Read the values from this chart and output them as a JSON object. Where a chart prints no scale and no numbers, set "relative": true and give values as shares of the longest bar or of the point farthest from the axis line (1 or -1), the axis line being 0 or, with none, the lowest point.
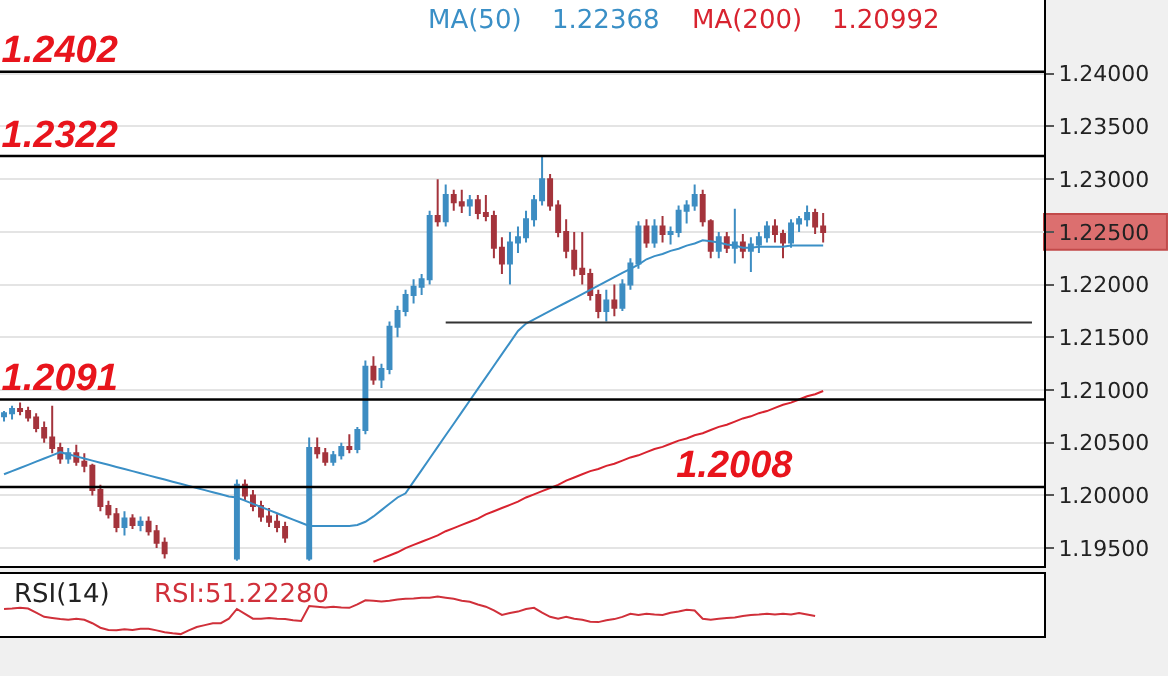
{
  "chart_data": [
    {
      "type": "candlestick",
      "tick_labels": "y",
      "grid": "y",
      "categories": [
        null,
        null,
        null,
        null,
        null,
        null,
        null,
        null,
        null,
        null,
        null,
        null,
        null,
        null,
        null,
        null,
        null,
        null,
        null,
        null,
        null,
        null,
        null,
        null,
        null,
        null,
        null,
        null,
        null,
        null,
        null,
        null,
        null,
        null,
        null,
        null,
        null,
        null,
        null,
        null,
        null,
        null,
        null,
        null,
        null,
        null,
        null,
        null,
        null,
        null,
        null,
        null,
        null,
        null,
        null,
        null,
        null,
        null,
        null,
        null,
        null,
        null,
        null,
        null,
        null,
        null,
        null,
        null,
        null,
        null,
        null,
        null,
        null,
        null,
        null,
        null,
        null,
        null,
        null,
        null,
        null,
        null,
        null,
        null,
        null,
        null,
        null,
        null,
        null,
        null,
        null,
        null,
        null,
        null,
        null,
        null,
        null,
        null,
        null,
        null,
        null,
        null,
        null,
        null,
        null,
        null,
        null,
        null,
        null,
        null,
        null,
        null,
        null,
        null,
        null,
        null,
        null,
        null,
        null,
        null,
        null,
        null,
        null,
        null,
        null,
        null,
        null,
        null,
        null,
        null
      ],
      "ohlc": [
        [
          1.2075,
          1.208,
          1.207,
          1.2078
        ],
        [
          1.2078,
          1.2085,
          1.2072,
          1.2082
        ],
        [
          1.2082,
          1.2088,
          1.2076,
          1.208
        ],
        [
          1.208,
          1.2084,
          1.207,
          1.2074
        ],
        [
          1.2074,
          1.2078,
          1.206,
          1.2064
        ],
        [
          1.2064,
          1.207,
          1.205,
          1.2055
        ],
        [
          1.2055,
          1.2085,
          1.204,
          1.2045
        ],
        [
          1.2045,
          1.205,
          1.203,
          1.2035
        ],
        [
          1.2035,
          1.2045,
          1.203,
          1.204
        ],
        [
          1.204,
          1.2048,
          1.2028,
          1.2032
        ],
        [
          1.2032,
          1.204,
          1.2022,
          1.2028
        ],
        [
          1.2028,
          1.203,
          1.2,
          1.2005
        ],
        [
          1.2005,
          1.201,
          1.1985,
          1.199
        ],
        [
          1.199,
          1.1995,
          1.1978,
          1.1982
        ],
        [
          1.1982,
          1.1988,
          1.1965,
          1.197
        ],
        [
          1.197,
          1.1985,
          1.1962,
          1.1978
        ],
        [
          1.1978,
          1.1982,
          1.1968,
          1.1972
        ],
        [
          1.1972,
          1.198,
          1.1966,
          1.1975
        ],
        [
          1.1975,
          1.198,
          1.1962,
          1.1966
        ],
        [
          1.1966,
          1.1972,
          1.195,
          1.1955
        ],
        [
          1.1955,
          1.196,
          1.194,
          1.1945
        ],
        null,
        null,
        null,
        null,
        null,
        null,
        null,
        null,
        [
          1.194,
          1.2015,
          1.1938,
          1.201
        ],
        [
          1.201,
          1.2015,
          1.1995,
          1.2
        ],
        [
          1.2,
          1.2005,
          1.1985,
          1.199
        ],
        [
          1.199,
          1.1995,
          1.1975,
          1.198
        ],
        [
          1.198,
          1.1988,
          1.197,
          1.1975
        ],
        [
          1.1975,
          1.1982,
          1.1965,
          1.197
        ],
        [
          1.197,
          1.1975,
          1.1955,
          1.196
        ],
        null,
        null,
        [
          1.194,
          1.2055,
          1.1938,
          1.2045
        ],
        [
          1.2045,
          1.2055,
          1.2035,
          1.204
        ],
        [
          1.204,
          1.2045,
          1.2028,
          1.2032
        ],
        [
          1.2032,
          1.2042,
          1.2028,
          1.2038
        ],
        [
          1.2038,
          1.205,
          1.2034,
          1.2046
        ],
        [
          1.2046,
          1.2058,
          1.204,
          1.2044
        ],
        [
          1.2044,
          1.2065,
          1.204,
          1.2062
        ],
        [
          1.2062,
          1.2128,
          1.2058,
          1.2122
        ],
        [
          1.2122,
          1.2132,
          1.2105,
          1.211
        ],
        [
          1.211,
          1.2125,
          1.2102,
          1.212
        ],
        [
          1.212,
          1.2165,
          1.2115,
          1.216
        ],
        [
          1.216,
          1.218,
          1.215,
          1.2175
        ],
        [
          1.2175,
          1.2195,
          1.217,
          1.219
        ],
        [
          1.219,
          1.2205,
          1.2182,
          1.2198
        ],
        [
          1.2198,
          1.221,
          1.219,
          1.2205
        ],
        [
          1.2205,
          1.227,
          1.22,
          1.2265
        ],
        [
          1.2265,
          1.23,
          1.2255,
          1.226
        ],
        [
          1.226,
          1.2295,
          1.2255,
          1.2285
        ],
        [
          1.2285,
          1.229,
          1.227,
          1.2278
        ],
        [
          1.2278,
          1.229,
          1.2268,
          1.2275
        ],
        [
          1.2275,
          1.2285,
          1.2265,
          1.228
        ],
        [
          1.228,
          1.2285,
          1.2262,
          1.2268
        ],
        [
          1.2268,
          1.2285,
          1.226,
          1.2265
        ],
        [
          1.2265,
          1.227,
          1.2225,
          1.2235
        ],
        [
          1.2235,
          1.2245,
          1.221,
          1.222
        ],
        [
          1.222,
          1.225,
          1.22,
          1.224
        ],
        [
          1.224,
          1.2255,
          1.223,
          1.2245
        ],
        [
          1.2245,
          1.227,
          1.224,
          1.2262
        ],
        [
          1.2262,
          1.2285,
          1.2255,
          1.228
        ],
        [
          1.228,
          1.2322,
          1.2275,
          1.23
        ],
        [
          1.23,
          1.2305,
          1.227,
          1.2275
        ],
        [
          1.2275,
          1.228,
          1.2245,
          1.225
        ],
        [
          1.225,
          1.2262,
          1.2225,
          1.2232
        ],
        [
          1.2232,
          1.225,
          1.2208,
          1.2215
        ],
        [
          1.2215,
          1.225,
          1.22,
          1.221
        ],
        [
          1.221,
          1.2215,
          1.2185,
          1.219
        ],
        [
          1.219,
          1.2195,
          1.2168,
          1.2175
        ],
        [
          1.2175,
          1.2195,
          1.2165,
          1.2185
        ],
        [
          1.2185,
          1.22,
          1.217,
          1.2178
        ],
        [
          1.2178,
          1.2205,
          1.2175,
          1.22
        ],
        [
          1.22,
          1.2225,
          1.2195,
          1.222
        ],
        [
          1.222,
          1.226,
          1.2215,
          1.2255
        ],
        [
          1.2255,
          1.2262,
          1.2235,
          1.224
        ],
        [
          1.224,
          1.2262,
          1.2235,
          1.2255
        ],
        [
          1.2255,
          1.2265,
          1.224,
          1.2248
        ],
        [
          1.2248,
          1.2255,
          1.2238,
          1.225
        ],
        [
          1.225,
          1.2275,
          1.2245,
          1.227
        ],
        [
          1.227,
          1.228,
          1.2258,
          1.2275
        ],
        [
          1.2275,
          1.2295,
          1.227,
          1.2285
        ],
        [
          1.2285,
          1.229,
          1.2255,
          1.226
        ],
        [
          1.226,
          1.2262,
          1.2225,
          1.2232
        ],
        [
          1.2232,
          1.225,
          1.2225,
          1.2245
        ],
        [
          1.2245,
          1.225,
          1.223,
          1.2235
        ],
        [
          1.2235,
          1.2272,
          1.222,
          1.224
        ],
        [
          1.224,
          1.2248,
          1.2225,
          1.2232
        ],
        [
          1.2232,
          1.2245,
          1.2212,
          1.2238
        ],
        [
          1.2238,
          1.225,
          1.223,
          1.2245
        ],
        [
          1.2245,
          1.226,
          1.224,
          1.2255
        ],
        [
          1.2255,
          1.2262,
          1.224,
          1.2248
        ],
        [
          1.2248,
          1.2252,
          1.2225,
          1.224
        ],
        [
          1.224,
          1.2262,
          1.2235,
          1.2258
        ],
        [
          1.2258,
          1.2265,
          1.225,
          1.2262
        ],
        [
          1.2262,
          1.2275,
          1.2255,
          1.2268
        ],
        [
          1.2268,
          1.2272,
          1.2248,
          1.2255
        ],
        [
          1.2255,
          1.2268,
          1.224,
          1.225
        ],
        null,
        null,
        null,
        null,
        null,
        null,
        null,
        null,
        null,
        null,
        null,
        null,
        null,
        null,
        null,
        null,
        null,
        null,
        null,
        null,
        null,
        null,
        null,
        null,
        null,
        null,
        null
      ],
      "colors": [
        "#3d8dc2",
        "#3d8dc2",
        "#a4343c",
        "#a4343c",
        "#a4343c",
        "#a4343c",
        "#a4343c",
        "#a4343c",
        "#3d8dc2",
        "#a4343c",
        "#a4343c",
        "#a4343c",
        "#a4343c",
        "#a4343c",
        "#a4343c",
        "#3d8dc2",
        "#a4343c",
        "#3d8dc2",
        "#a4343c",
        "#a4343c",
        "#a4343c",
        null,
        null,
        null,
        null,
        null,
        null,
        null,
        null,
        "#3d8dc2",
        "#a4343c",
        "#a4343c",
        "#a4343c",
        "#a4343c",
        "#a4343c",
        "#a4343c",
        null,
        null,
        "#3d8dc2",
        "#a4343c",
        "#a4343c",
        "#3d8dc2",
        "#3d8dc2",
        "#a4343c",
        "#3d8dc2",
        "#3d8dc2",
        "#a4343c",
        "#3d8dc2",
        "#3d8dc2",
        "#3d8dc2",
        "#3d8dc2",
        "#3d8dc2",
        "#3d8dc2",
        "#3d8dc2",
        "#a4343c",
        "#3d8dc2",
        "#a4343c",
        "#a4343c",
        "#3d8dc2",
        "#a4343c",
        "#a4343c",
        "#a4343c",
        "#a4343c",
        "#3d8dc2",
        "#3d8dc2",
        "#3d8dc2",
        "#3d8dc2",
        "#3d8dc2",
        "#a4343c",
        "#a4343c",
        "#a4343c",
        "#a4343c",
        "#a4343c",
        "#a4343c",
        "#a4343c",
        "#3d8dc2",
        "#a4343c",
        "#3d8dc2",
        "#3d8dc2",
        "#3d8dc2",
        "#a4343c",
        "#3d8dc2",
        "#a4343c",
        "#3d8dc2",
        "#3d8dc2",
        "#3d8dc2",
        "#3d8dc2",
        "#a4343c",
        "#a4343c",
        "#3d8dc2",
        "#a4343c",
        "#3d8dc2",
        "#a4343c",
        "#3d8dc2",
        "#3d8dc2",
        "#3d8dc2",
        "#a4343c",
        "#a4343c",
        "#3d8dc2",
        "#3d8dc2",
        "#3d8dc2",
        "#a4343c",
        "#a4343c",
        null,
        null,
        null,
        null,
        null,
        null,
        null,
        null,
        null,
        null,
        null,
        null,
        null,
        null,
        null,
        null,
        null,
        null,
        null,
        null,
        null,
        null,
        null,
        null,
        null,
        null,
        null
      ],
      "series": [
        {
          "type": "line",
          "name": "MA(50)",
          "color": "#3a8fc6",
          "values": [
            1.202,
            1.2023,
            1.2026,
            1.2029,
            1.2032,
            1.2035,
            1.2038,
            1.2041,
            1.2039,
            1.2037,
            1.2035,
            1.2033,
            1.2031,
            1.2029,
            1.2027,
            1.2025,
            1.2023,
            1.2021,
            1.2019,
            1.2017,
            1.2015,
            1.2013,
            1.2011,
            1.2009,
            1.2007,
            1.2005,
            1.2003,
            1.2001,
            1.1999,
            1.1998,
            1.1995,
            1.1992,
            1.1989,
            1.1986,
            1.1983,
            1.198,
            1.1977,
            1.1974,
            1.1971,
            1.1971,
            1.1971,
            1.1971,
            1.1971,
            1.1971,
            1.1972,
            1.1975,
            1.198,
            1.1986,
            1.1992,
            1.1998,
            1.2002,
            1.2013,
            1.2024,
            1.2035,
            1.2046,
            1.2057,
            1.2068,
            1.2079,
            1.209,
            1.2101,
            1.2112,
            1.2123,
            1.2134,
            1.2145,
            1.2156,
            1.2163,
            1.2167,
            1.2171,
            1.2175,
            1.2179,
            1.2183,
            1.2187,
            1.2191,
            1.2195,
            1.2199,
            1.2203,
            1.2207,
            1.2211,
            1.2215,
            1.2219,
            1.2224,
            1.2227,
            1.2229,
            1.2232,
            1.2234,
            1.2237,
            1.2239,
            1.2242,
            1.2241,
            1.224,
            1.2238,
            1.2237,
            1.2235,
            1.2235,
            1.2236,
            1.2236,
            1.2236,
            1.2236,
            1.2237,
            1.2237,
            1.2237,
            1.2237,
            1.2237,
            null,
            null,
            null,
            null,
            null,
            null,
            null,
            null,
            null,
            null,
            null,
            null,
            null,
            null,
            null,
            null,
            null,
            null,
            null,
            null,
            null,
            null,
            null,
            null,
            null,
            null,
            null
          ]
        },
        {
          "type": "line",
          "name": "MA(200)",
          "color": "#d8232f",
          "values": [
            null,
            null,
            null,
            null,
            null,
            null,
            null,
            null,
            null,
            null,
            null,
            null,
            null,
            null,
            null,
            null,
            null,
            null,
            null,
            null,
            null,
            null,
            null,
            null,
            null,
            null,
            null,
            null,
            null,
            null,
            null,
            null,
            null,
            null,
            null,
            null,
            null,
            null,
            null,
            null,
            null,
            null,
            null,
            null,
            null,
            null,
            1.1937,
            1.194,
            1.1943,
            1.1946,
            1.195,
            1.1953,
            1.1956,
            1.1959,
            1.1962,
            1.1966,
            1.1969,
            1.1972,
            1.1975,
            1.1978,
            1.1982,
            1.1985,
            1.1988,
            1.1991,
            1.1994,
            1.1998,
            1.2001,
            1.2004,
            1.2007,
            1.201,
            1.2014,
            1.2017,
            1.202,
            1.2023,
            1.2025,
            1.2028,
            1.203,
            1.2033,
            1.2036,
            1.2038,
            1.2041,
            1.2044,
            1.2046,
            1.2049,
            1.2052,
            1.2054,
            1.2057,
            1.2059,
            1.2062,
            1.2065,
            1.2067,
            1.207,
            1.2073,
            1.2075,
            1.2078,
            1.208,
            1.2083,
            1.2086,
            1.2088,
            1.2091,
            1.2094,
            1.2096,
            1.2099,
            null,
            null,
            null,
            null,
            null,
            null,
            null,
            null,
            null,
            null,
            null,
            null,
            null,
            null,
            null,
            null,
            null,
            null,
            null,
            null,
            null,
            null,
            null,
            null,
            null,
            null,
            null
          ]
        },
        {
          "type": "line",
          "color": "#333333",
          "values": [
            null,
            null,
            null,
            null,
            null,
            null,
            null,
            null,
            null,
            null,
            null,
            null,
            null,
            null,
            null,
            null,
            null,
            null,
            null,
            null,
            null,
            null,
            null,
            null,
            null,
            null,
            null,
            null,
            null,
            null,
            null,
            null,
            null,
            null,
            null,
            null,
            null,
            null,
            null,
            null,
            null,
            null,
            null,
            null,
            null,
            null,
            null,
            null,
            null,
            null,
            null,
            null,
            null,
            null,
            null,
            1.2164,
            1.2164,
            1.2164,
            1.2164,
            1.2164,
            1.2164,
            1.2164,
            1.2164,
            1.2164,
            1.2164,
            1.2164,
            1.2164,
            1.2164,
            1.2164,
            1.2164,
            1.2164,
            1.2164,
            1.2164,
            1.2164,
            1.2164,
            1.2164,
            1.2164,
            1.2164,
            1.2164,
            1.2164,
            1.2164,
            1.2164,
            1.2164,
            1.2164,
            1.2164,
            1.2164,
            1.2164,
            1.2164,
            1.2164,
            1.2164,
            1.2164,
            1.2164,
            1.2164,
            1.2164,
            1.2164,
            1.2164,
            1.2164,
            1.2164,
            1.2164,
            1.2164,
            1.2164,
            1.2164,
            1.2164,
            1.2164,
            1.2164,
            1.2164,
            1.2164,
            1.2164,
            1.2164,
            1.2164,
            1.2164,
            1.2164,
            1.2164,
            1.2164,
            1.2164,
            1.2164,
            1.2164,
            1.2164,
            1.2164,
            1.2164,
            1.2164,
            1.2164,
            1.2164,
            1.2164,
            1.2164,
            1.2164,
            1.2164,
            1.2164,
            1.2164,
            null
          ]
        }
      ],
      "ylim": [
        1.1933,
        1.247
      ],
      "yticks": [
        {
          "value": 1.195,
          "label": "1.19500"
        },
        {
          "value": 1.2,
          "label": "1.20000"
        },
        {
          "value": 1.205,
          "label": "1.20500"
        },
        {
          "value": 1.21,
          "label": "1.21000"
        },
        {
          "value": 1.215,
          "label": "1.21500"
        },
        {
          "value": 1.22,
          "label": "1.22000"
        },
        {
          "value": 1.225,
          "label": "1.22500"
        },
        {
          "value": 1.23,
          "label": "1.23000"
        },
        {
          "value": 1.235,
          "label": "1.23500"
        },
        {
          "value": 1.24,
          "label": "1.24000"
        }
      ],
      "ref_lines": [
        {
          "axis": "y",
          "value": 1.2402,
          "label": "1.2402",
          "color": "#000000"
        },
        {
          "axis": "y",
          "value": 1.2322,
          "label": "1.2322",
          "color": "#000000"
        },
        {
          "axis": "y",
          "value": 1.2091,
          "label": "1.2091",
          "color": "#000000"
        },
        {
          "axis": "y",
          "value": 1.2008,
          "label": "1.2008",
          "color": "#000000"
        }
      ],
      "annotations": [
        "1.22368",
        "1.20992"
      ]
    },
    {
      "type": "line",
      "relative": true,
      "tick_labels": false,
      "title": "RSI(14)",
      "categories": [
        null,
        null,
        null,
        null,
        null,
        null,
        null,
        null,
        null,
        null,
        null,
        null,
        null,
        null,
        null,
        null,
        null,
        null,
        null,
        null,
        null,
        null,
        null,
        null,
        null,
        null,
        null,
        null,
        null,
        null,
        null,
        null,
        null,
        null,
        null,
        null,
        null,
        null,
        null,
        null,
        null,
        null,
        null,
        null,
        null,
        null,
        null,
        null,
        null,
        null,
        null,
        null,
        null,
        null,
        null,
        null,
        null,
        null,
        null,
        null,
        null,
        null,
        null,
        null,
        null,
        null,
        null,
        null,
        null,
        null,
        null,
        null,
        null,
        null,
        null,
        null,
        null,
        null,
        null,
        null,
        null,
        null,
        null,
        null,
        null,
        null,
        null,
        null,
        null,
        null,
        null,
        null,
        null,
        null,
        null,
        null,
        null,
        null,
        null,
        null,
        null,
        null,
        null,
        null,
        null,
        null,
        null,
        null,
        null,
        null,
        null,
        null,
        null,
        null,
        null,
        null,
        null,
        null,
        null,
        null,
        null,
        null,
        null,
        null,
        null,
        null,
        null,
        null,
        null,
        null
      ],
      "series": [
        {
          "name": "RSI:51.22280",
          "color": "#d0303a",
          "values": [
            0.67,
            0.68,
            0.7,
            0.68,
            0.57,
            0.46,
            0.43,
            0.4,
            0.38,
            0.41,
            0.38,
            0.29,
            0.17,
            0.11,
            0.1,
            0.13,
            0.11,
            0.14,
            0.14,
            0.1,
            0.05,
            0.02,
            0,
            0.1,
            0.19,
            0.24,
            0.29,
            0.29,
            0.41,
            0.67,
            0.54,
            0.41,
            0.41,
            0.43,
            0.41,
            0.4,
            0.37,
            0.35,
            0.75,
            0.73,
            0.71,
            0.73,
            0.71,
            0.7,
            0.79,
            0.9,
            0.89,
            0.87,
            0.89,
            0.92,
            0.94,
            0.95,
            0.97,
            0.97,
            1,
            0.97,
            0.94,
            0.89,
            0.86,
            0.79,
            0.73,
            0.63,
            0.51,
            0.56,
            0.6,
            0.67,
            0.7,
            0.57,
            0.46,
            0.41,
            0.46,
            0.41,
            0.38,
            0.33,
            0.32,
            0.37,
            0.4,
            0.46,
            0.54,
            0.51,
            0.54,
            0.52,
            0.51,
            0.57,
            0.6,
            0.65,
            0.63,
            0.41,
            0.38,
            0.41,
            0.43,
            0.44,
            0.48,
            0.51,
            0.52,
            0.54,
            0.52,
            0.54,
            0.52,
            0.56,
            0.52,
            0.48,
            null,
            null,
            null,
            null,
            null,
            null,
            null,
            null,
            null,
            null,
            null,
            null,
            null,
            null,
            null,
            null,
            null,
            null,
            null,
            null,
            null,
            null,
            null,
            null,
            null,
            null,
            null,
            null
          ]
        }
      ]
    }
  ]
}
